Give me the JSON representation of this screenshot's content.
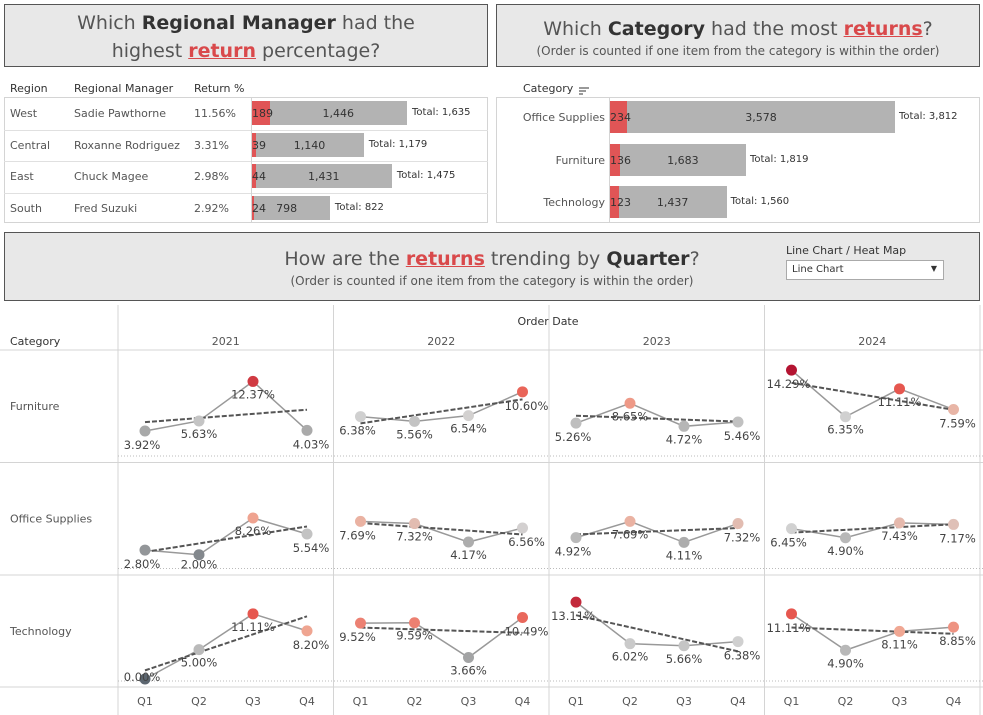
{
  "titles": {
    "manager": {
      "pre": "Which ",
      "bold": "Regional Manager",
      "mid": " had the",
      "line2pre": "highest ",
      "ret": "return",
      "line2post": " percentage?"
    },
    "category": {
      "pre": "Which ",
      "bold": "Category",
      "mid": " had the most ",
      "ret": "returns",
      "post": "?",
      "sub": "(Order is counted if one item from the category is within the order)"
    },
    "trend": {
      "pre": "How are the ",
      "ret": "returns",
      "mid": " trending by ",
      "bold": "Quarter",
      "post": "?",
      "sub": "(Order is counted if one item from the category is within the order)"
    }
  },
  "manager_table": {
    "headers": [
      "Region",
      "Regional Manager",
      "Return %"
    ],
    "rows": [
      {
        "region": "West",
        "manager": "Sadie Pawthorne",
        "pct": "11.56%",
        "returned": 189,
        "kept": 1446,
        "total": "Total: 1,635",
        "ret_label": "189",
        "kept_label": "1,446"
      },
      {
        "region": "Central",
        "manager": "Roxanne Rodriguez",
        "pct": "3.31%",
        "returned": 39,
        "kept": 1140,
        "total": "Total: 1,179",
        "ret_label": "39",
        "kept_label": "1,140"
      },
      {
        "region": "East",
        "manager": "Chuck Magee",
        "pct": "2.98%",
        "returned": 44,
        "kept": 1431,
        "total": "Total: 1,475",
        "ret_label": "44",
        "kept_label": "1,431"
      },
      {
        "region": "South",
        "manager": "Fred Suzuki",
        "pct": "2.92%",
        "returned": 24,
        "kept": 798,
        "total": "Total: 822",
        "ret_label": "24",
        "kept_label": "798"
      }
    ]
  },
  "category_table": {
    "header": "Category",
    "sort_icon": "sort-icon",
    "rows": [
      {
        "category": "Office Supplies",
        "returned": 234,
        "kept": 3578,
        "total": "Total: 3,812",
        "ret_label": "234",
        "kept_label": "3,578"
      },
      {
        "category": "Furniture",
        "returned": 136,
        "kept": 1683,
        "total": "Total: 1,819",
        "ret_label": "136",
        "kept_label": "1,683"
      },
      {
        "category": "Technology",
        "returned": 123,
        "kept": 1437,
        "total": "Total: 1,560",
        "ret_label": "123",
        "kept_label": "1,437"
      }
    ]
  },
  "control": {
    "label": "Line Chart / Heat Map",
    "value": "Line Chart"
  },
  "trend_grid": {
    "col_header": "Order Date",
    "row_header": "Category",
    "years": [
      "2021",
      "2022",
      "2023",
      "2024"
    ],
    "quarters": [
      "Q1",
      "Q2",
      "Q3",
      "Q4"
    ],
    "categories": [
      "Furniture",
      "Office Supplies",
      "Technology"
    ]
  },
  "chart_data": {
    "type": "line",
    "title": "How are the returns trending by Quarter?",
    "x": [
      "Q1",
      "Q2",
      "Q3",
      "Q4"
    ],
    "facets": {
      "Furniture": {
        "2021": [
          3.92,
          5.63,
          12.37,
          4.03
        ],
        "2022": [
          6.38,
          5.56,
          6.54,
          10.6
        ],
        "2023": [
          5.26,
          8.65,
          4.72,
          5.46
        ],
        "2024": [
          14.29,
          6.35,
          11.11,
          7.59
        ]
      },
      "Office Supplies": {
        "2021": [
          2.8,
          2.0,
          8.26,
          5.54
        ],
        "2022": [
          7.69,
          7.32,
          4.17,
          6.56
        ],
        "2023": [
          4.92,
          7.69,
          4.11,
          7.32
        ],
        "2024": [
          6.45,
          4.9,
          7.43,
          7.17
        ]
      },
      "Technology": {
        "2021": [
          0.0,
          5.0,
          11.11,
          8.2
        ],
        "2022": [
          9.52,
          9.59,
          3.66,
          10.49
        ],
        "2023": [
          13.11,
          6.02,
          5.66,
          6.38
        ],
        "2024": [
          11.11,
          4.9,
          8.11,
          8.85
        ]
      }
    },
    "labels": {
      "Furniture": {
        "2021": [
          "3.92%",
          "5.63%",
          "12.37%",
          "4.03%"
        ],
        "2022": [
          "6.38%",
          "5.56%",
          "6.54%",
          "10.60%"
        ],
        "2023": [
          "5.26%",
          "8.65%",
          "4.72%",
          "5.46%"
        ],
        "2024": [
          "14.29%",
          "6.35%",
          "11.11%",
          "7.59%"
        ]
      },
      "Office Supplies": {
        "2021": [
          "2.80%",
          "2.00%",
          "8.26%",
          "5.54%"
        ],
        "2022": [
          "7.69%",
          "7.32%",
          "4.17%",
          "6.56%"
        ],
        "2023": [
          "4.92%",
          "7.69%",
          "4.11%",
          "7.32%"
        ],
        "2024": [
          "6.45%",
          "4.90%",
          "7.43%",
          "7.17%"
        ]
      },
      "Technology": {
        "2021": [
          "0.00%",
          "5.00%",
          "11.11%",
          "8.20%"
        ],
        "2022": [
          "9.52%",
          "9.59%",
          "3.66%",
          "10.49%"
        ],
        "2023": [
          "13.11%",
          "6.02%",
          "5.66%",
          "6.38%"
        ],
        "2024": [
          "11.11%",
          "4.90%",
          "8.11%",
          "8.85%"
        ]
      }
    },
    "trend_line": "linear",
    "colors": {
      "returned": "#e05556",
      "kept": "#b3b3b3",
      "line": "#999999",
      "trend": "#555555"
    }
  }
}
